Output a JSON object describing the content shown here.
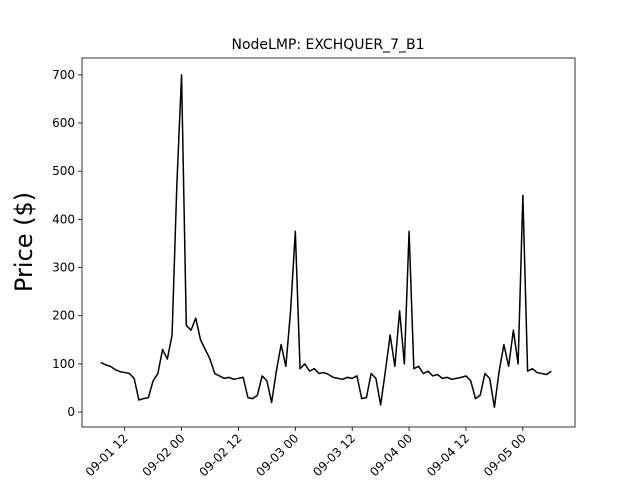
{
  "chart_data": {
    "type": "line",
    "title": "NodeLMP: EXCHQUER_7_B1",
    "ylabel": "Price ($)",
    "x": [
      "09-01 07",
      "09-01 08",
      "09-01 09",
      "09-01 10",
      "09-01 11",
      "09-01 12",
      "09-01 13",
      "09-01 14",
      "09-01 15",
      "09-01 16",
      "09-01 17",
      "09-01 18",
      "09-01 19",
      "09-01 20",
      "09-01 21",
      "09-01 22",
      "09-01 23",
      "09-02 00",
      "09-02 01",
      "09-02 02",
      "09-02 03",
      "09-02 04",
      "09-02 05",
      "09-02 06",
      "09-02 07",
      "09-02 08",
      "09-02 09",
      "09-02 10",
      "09-02 11",
      "09-02 12",
      "09-02 13",
      "09-02 14",
      "09-02 15",
      "09-02 16",
      "09-02 17",
      "09-02 18",
      "09-02 19",
      "09-02 20",
      "09-02 21",
      "09-02 22",
      "09-02 23",
      "09-03 00",
      "09-03 01",
      "09-03 02",
      "09-03 03",
      "09-03 04",
      "09-03 05",
      "09-03 06",
      "09-03 07",
      "09-03 08",
      "09-03 09",
      "09-03 10",
      "09-03 11",
      "09-03 12",
      "09-03 13",
      "09-03 14",
      "09-03 15",
      "09-03 16",
      "09-03 17",
      "09-03 18",
      "09-03 19",
      "09-03 20",
      "09-03 21",
      "09-03 22",
      "09-03 23",
      "09-04 00",
      "09-04 01",
      "09-04 02",
      "09-04 03",
      "09-04 04",
      "09-04 05",
      "09-04 06",
      "09-04 07",
      "09-04 08",
      "09-04 09",
      "09-04 10",
      "09-04 11",
      "09-04 12",
      "09-04 13",
      "09-04 14",
      "09-04 15",
      "09-04 16",
      "09-04 17",
      "09-04 18",
      "09-04 19",
      "09-04 20",
      "09-04 21",
      "09-04 22",
      "09-04 23",
      "09-05 00",
      "09-05 01",
      "09-05 02",
      "09-05 03",
      "09-05 04",
      "09-05 05",
      "09-05 06"
    ],
    "series": [
      {
        "name": "EXCHQUER_7_B1",
        "color": "#000000",
        "values": [
          103,
          98,
          95,
          88,
          84,
          82,
          80,
          70,
          25,
          28,
          30,
          65,
          80,
          130,
          110,
          160,
          470,
          700,
          180,
          170,
          195,
          150,
          130,
          110,
          80,
          75,
          70,
          72,
          68,
          70,
          72,
          30,
          28,
          35,
          75,
          65,
          20,
          85,
          140,
          95,
          210,
          375,
          90,
          100,
          85,
          90,
          80,
          82,
          78,
          72,
          70,
          68,
          72,
          70,
          75,
          28,
          30,
          80,
          70,
          15,
          85,
          160,
          95,
          210,
          100,
          375,
          90,
          95,
          80,
          85,
          75,
          78,
          70,
          72,
          68,
          70,
          72,
          75,
          65,
          28,
          35,
          80,
          70,
          10,
          85,
          140,
          95,
          170,
          100,
          450,
          85,
          90,
          82,
          80,
          78,
          85
        ]
      }
    ],
    "xlim": [
      "09-01 03",
      "09-05 11"
    ],
    "xticks": [
      "09-01 12",
      "09-02 00",
      "09-02 12",
      "09-03 00",
      "09-03 12",
      "09-04 00",
      "09-04 12",
      "09-05 00"
    ],
    "ylim": [
      -31,
      735
    ],
    "yticks": [
      0,
      100,
      200,
      300,
      400,
      500,
      600,
      700
    ]
  }
}
